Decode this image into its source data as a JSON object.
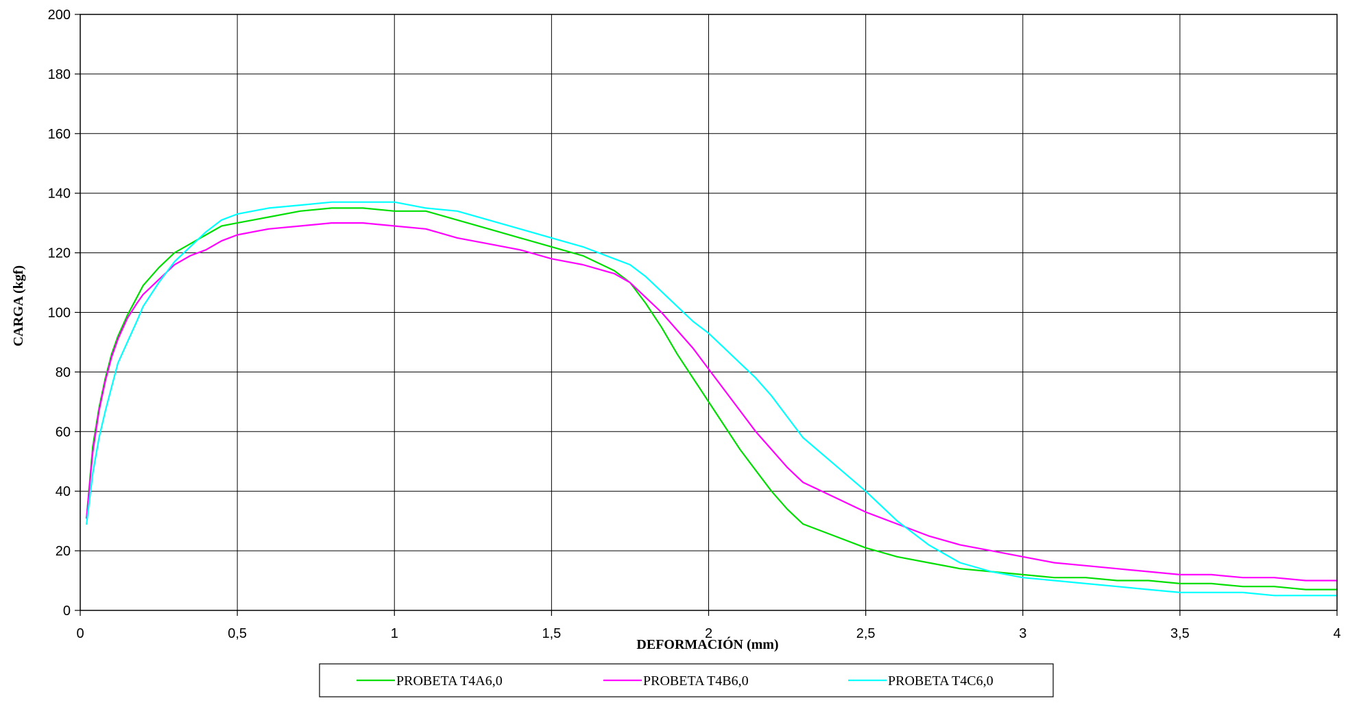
{
  "chart_data": {
    "type": "line",
    "title": "",
    "xlabel": "DEFORMACIÓN (mm)",
    "ylabel": "CARGA (kgf)",
    "xlim": [
      0,
      4
    ],
    "ylim": [
      0,
      200
    ],
    "x_ticks": [
      "0",
      "0,5",
      "1",
      "1,5",
      "2",
      "2,5",
      "3",
      "3,5",
      "4"
    ],
    "y_ticks": [
      "0",
      "20",
      "40",
      "60",
      "80",
      "100",
      "120",
      "140",
      "160",
      "180",
      "200"
    ],
    "grid": true,
    "legend_position": "bottom",
    "series": [
      {
        "name": "PROBETA T4A6,0",
        "color": "#00dd00",
        "points": [
          [
            0.02,
            31
          ],
          [
            0.04,
            55
          ],
          [
            0.06,
            68
          ],
          [
            0.08,
            78
          ],
          [
            0.1,
            86
          ],
          [
            0.12,
            92
          ],
          [
            0.15,
            99
          ],
          [
            0.18,
            105
          ],
          [
            0.2,
            109
          ],
          [
            0.25,
            115
          ],
          [
            0.3,
            120
          ],
          [
            0.35,
            123
          ],
          [
            0.4,
            126
          ],
          [
            0.45,
            129
          ],
          [
            0.5,
            130
          ],
          [
            0.6,
            132
          ],
          [
            0.7,
            134
          ],
          [
            0.8,
            135
          ],
          [
            0.9,
            135
          ],
          [
            1.0,
            134
          ],
          [
            1.1,
            134
          ],
          [
            1.2,
            131
          ],
          [
            1.3,
            128
          ],
          [
            1.4,
            125
          ],
          [
            1.5,
            122
          ],
          [
            1.6,
            119
          ],
          [
            1.7,
            114
          ],
          [
            1.75,
            110
          ],
          [
            1.8,
            103
          ],
          [
            1.85,
            95
          ],
          [
            1.9,
            86
          ],
          [
            1.95,
            78
          ],
          [
            2.0,
            70
          ],
          [
            2.05,
            62
          ],
          [
            2.1,
            54
          ],
          [
            2.15,
            47
          ],
          [
            2.2,
            40
          ],
          [
            2.25,
            34
          ],
          [
            2.3,
            29
          ],
          [
            2.4,
            25
          ],
          [
            2.5,
            21
          ],
          [
            2.6,
            18
          ],
          [
            2.7,
            16
          ],
          [
            2.8,
            14
          ],
          [
            2.9,
            13
          ],
          [
            3.0,
            12
          ],
          [
            3.1,
            11
          ],
          [
            3.2,
            11
          ],
          [
            3.3,
            10
          ],
          [
            3.4,
            10
          ],
          [
            3.5,
            9
          ],
          [
            3.6,
            9
          ],
          [
            3.7,
            8
          ],
          [
            3.8,
            8
          ],
          [
            3.9,
            7
          ],
          [
            4.0,
            7
          ]
        ]
      },
      {
        "name": "PROBETA T4B6,0",
        "color": "#ff00ff",
        "points": [
          [
            0.02,
            31
          ],
          [
            0.04,
            53
          ],
          [
            0.06,
            67
          ],
          [
            0.08,
            77
          ],
          [
            0.1,
            85
          ],
          [
            0.12,
            91
          ],
          [
            0.15,
            98
          ],
          [
            0.18,
            103
          ],
          [
            0.2,
            106
          ],
          [
            0.25,
            111
          ],
          [
            0.3,
            116
          ],
          [
            0.35,
            119
          ],
          [
            0.4,
            121
          ],
          [
            0.45,
            124
          ],
          [
            0.5,
            126
          ],
          [
            0.6,
            128
          ],
          [
            0.7,
            129
          ],
          [
            0.8,
            130
          ],
          [
            0.9,
            130
          ],
          [
            1.0,
            129
          ],
          [
            1.1,
            128
          ],
          [
            1.2,
            125
          ],
          [
            1.3,
            123
          ],
          [
            1.4,
            121
          ],
          [
            1.5,
            118
          ],
          [
            1.6,
            116
          ],
          [
            1.7,
            113
          ],
          [
            1.75,
            110
          ],
          [
            1.8,
            105
          ],
          [
            1.85,
            100
          ],
          [
            1.9,
            94
          ],
          [
            1.95,
            88
          ],
          [
            2.0,
            81
          ],
          [
            2.05,
            74
          ],
          [
            2.1,
            67
          ],
          [
            2.15,
            60
          ],
          [
            2.2,
            54
          ],
          [
            2.25,
            48
          ],
          [
            2.3,
            43
          ],
          [
            2.4,
            38
          ],
          [
            2.5,
            33
          ],
          [
            2.6,
            29
          ],
          [
            2.7,
            25
          ],
          [
            2.8,
            22
          ],
          [
            2.9,
            20
          ],
          [
            3.0,
            18
          ],
          [
            3.1,
            16
          ],
          [
            3.2,
            15
          ],
          [
            3.3,
            14
          ],
          [
            3.4,
            13
          ],
          [
            3.5,
            12
          ],
          [
            3.6,
            12
          ],
          [
            3.7,
            11
          ],
          [
            3.8,
            11
          ],
          [
            3.9,
            10
          ],
          [
            4.0,
            10
          ]
        ]
      },
      {
        "name": "PROBETA T4C6,0",
        "color": "#00ffff",
        "points": [
          [
            0.02,
            29
          ],
          [
            0.04,
            46
          ],
          [
            0.06,
            58
          ],
          [
            0.08,
            67
          ],
          [
            0.1,
            75
          ],
          [
            0.12,
            83
          ],
          [
            0.15,
            90
          ],
          [
            0.18,
            97
          ],
          [
            0.2,
            102
          ],
          [
            0.25,
            110
          ],
          [
            0.3,
            117
          ],
          [
            0.35,
            122
          ],
          [
            0.4,
            127
          ],
          [
            0.45,
            131
          ],
          [
            0.5,
            133
          ],
          [
            0.6,
            135
          ],
          [
            0.7,
            136
          ],
          [
            0.8,
            137
          ],
          [
            0.9,
            137
          ],
          [
            1.0,
            137
          ],
          [
            1.1,
            135
          ],
          [
            1.2,
            134
          ],
          [
            1.3,
            131
          ],
          [
            1.4,
            128
          ],
          [
            1.5,
            125
          ],
          [
            1.6,
            122
          ],
          [
            1.7,
            118
          ],
          [
            1.75,
            116
          ],
          [
            1.8,
            112
          ],
          [
            1.85,
            107
          ],
          [
            1.9,
            102
          ],
          [
            1.95,
            97
          ],
          [
            2.0,
            93
          ],
          [
            2.05,
            88
          ],
          [
            2.1,
            83
          ],
          [
            2.15,
            78
          ],
          [
            2.2,
            72
          ],
          [
            2.25,
            65
          ],
          [
            2.3,
            58
          ],
          [
            2.4,
            49
          ],
          [
            2.5,
            40
          ],
          [
            2.6,
            30
          ],
          [
            2.7,
            22
          ],
          [
            2.8,
            16
          ],
          [
            2.9,
            13
          ],
          [
            3.0,
            11
          ],
          [
            3.1,
            10
          ],
          [
            3.2,
            9
          ],
          [
            3.3,
            8
          ],
          [
            3.4,
            7
          ],
          [
            3.5,
            6
          ],
          [
            3.6,
            6
          ],
          [
            3.7,
            6
          ],
          [
            3.8,
            5
          ],
          [
            3.9,
            5
          ],
          [
            4.0,
            5
          ]
        ]
      }
    ]
  }
}
